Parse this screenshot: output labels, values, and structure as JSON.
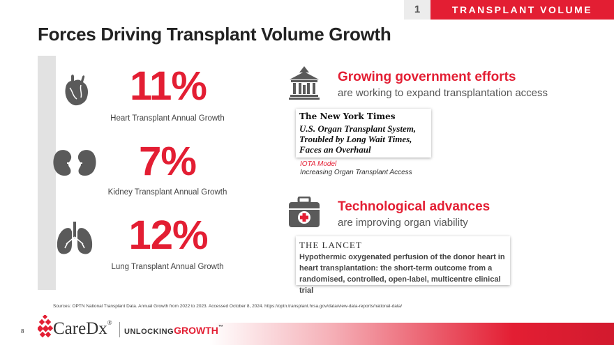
{
  "header": {
    "section_number": "1",
    "section_title": "TRANSPLANT VOLUME"
  },
  "title": "Forces Driving Transplant Volume Growth",
  "stats": [
    {
      "value": "11%",
      "label": "Heart Transplant Annual Growth",
      "icon": "heart-icon"
    },
    {
      "value": "7%",
      "label": "Kidney Transplant Annual Growth",
      "icon": "kidney-icon"
    },
    {
      "value": "12%",
      "label": "Lung Transplant Annual Growth",
      "icon": "lungs-icon"
    }
  ],
  "government": {
    "icon": "government-building-icon",
    "heading": "Growing government efforts",
    "subheading": "are working to expand transplantation access",
    "nyt_masthead": "The New York Times",
    "nyt_headline": "U.S. Organ Transplant System, Troubled by Long Wait Times, Faces an Overhaul",
    "iota_title": "IOTA Model",
    "iota_subtitle": "Increasing Organ Transplant Access"
  },
  "technology": {
    "icon": "medical-kit-icon",
    "heading": "Technological advances",
    "subheading": "are improving organ viability",
    "lancet_masthead": "THE LANCET",
    "lancet_headline": "Hypothermic oxygenated perfusion of the donor heart in heart transplantation: the short-term outcome from a randomised, controlled, open-label, multicentre clinical trial"
  },
  "sources": "Sources: OPTN National Transplant Data. Annual Growth from 2022 to 2023. Accessed October 8, 2024. https://optn.transplant.hrsa.gov/data/view-data-reports/national-data/",
  "footer": {
    "page_number": "8",
    "logo": "CareDx",
    "logo_mark": "®",
    "tagline_prefix": "UNLOCKING",
    "tagline_emphasis": "GROWTH",
    "tagline_mark": "™"
  },
  "colors": {
    "accent": "#e31e33",
    "icon_gray": "#5a5a5a",
    "bar_gray": "#e2e2e2"
  }
}
